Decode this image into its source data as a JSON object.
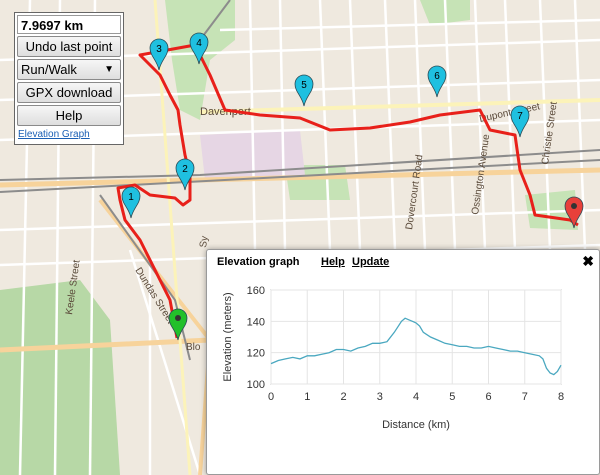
{
  "panel": {
    "distance": "7.9697 km",
    "undo_label": "Undo last point",
    "mode_selected": "Run/Walk",
    "gpx_label": "GPX download",
    "help_label": "Help",
    "elevation_link": "Elevation Graph"
  },
  "map": {
    "labels": {
      "davenport": "Davenport",
      "dupont": "Dupont Street",
      "christie": "Christie Street",
      "ossington": "Ossington Avenue",
      "dovercourt": "Dovercourt Road",
      "keele": "Keele Street",
      "dundas": "Dundas Street",
      "bloor": "Blo",
      "syd": "Sy"
    },
    "markers": [
      {
        "label": "1"
      },
      {
        "label": "2"
      },
      {
        "label": "3"
      },
      {
        "label": "4"
      },
      {
        "label": "5"
      },
      {
        "label": "6"
      },
      {
        "label": "7"
      }
    ],
    "route_color": "#e8201a",
    "marker_color": "#1fc0e0",
    "start_color": "#22c02a",
    "end_color": "#e8403a"
  },
  "popup": {
    "title": "Elevation graph",
    "help": "Help",
    "update": "Update",
    "close_glyph": "✖"
  },
  "chart_data": {
    "type": "line",
    "title": "",
    "xlabel": "Distance (km)",
    "ylabel": "Elevation (meters)",
    "xlim": [
      0,
      8
    ],
    "ylim": [
      100,
      160
    ],
    "xticks": [
      0,
      1,
      2,
      3,
      4,
      5,
      6,
      7,
      8
    ],
    "yticks": [
      100,
      120,
      140,
      160
    ],
    "grid": true,
    "series": [
      {
        "color": "#4aa8c0",
        "x": [
          0,
          0.2,
          0.4,
          0.6,
          0.8,
          1.0,
          1.2,
          1.4,
          1.6,
          1.8,
          2.0,
          2.2,
          2.4,
          2.6,
          2.8,
          3.0,
          3.2,
          3.4,
          3.6,
          3.7,
          3.8,
          3.9,
          4.0,
          4.1,
          4.2,
          4.4,
          4.6,
          4.8,
          5.0,
          5.2,
          5.4,
          5.6,
          5.8,
          6.0,
          6.2,
          6.4,
          6.6,
          6.8,
          7.0,
          7.2,
          7.4,
          7.5,
          7.6,
          7.7,
          7.8,
          7.9,
          8.0
        ],
        "y": [
          113,
          115,
          116,
          117,
          116,
          118,
          118,
          119,
          120,
          122,
          122,
          121,
          123,
          124,
          126,
          126,
          127,
          133,
          140,
          142,
          141,
          140,
          139,
          137,
          133,
          130,
          128,
          126,
          125,
          124,
          124,
          123,
          123,
          124,
          123,
          122,
          121,
          121,
          120,
          119,
          118,
          116,
          110,
          107,
          106,
          108,
          112
        ]
      }
    ]
  }
}
